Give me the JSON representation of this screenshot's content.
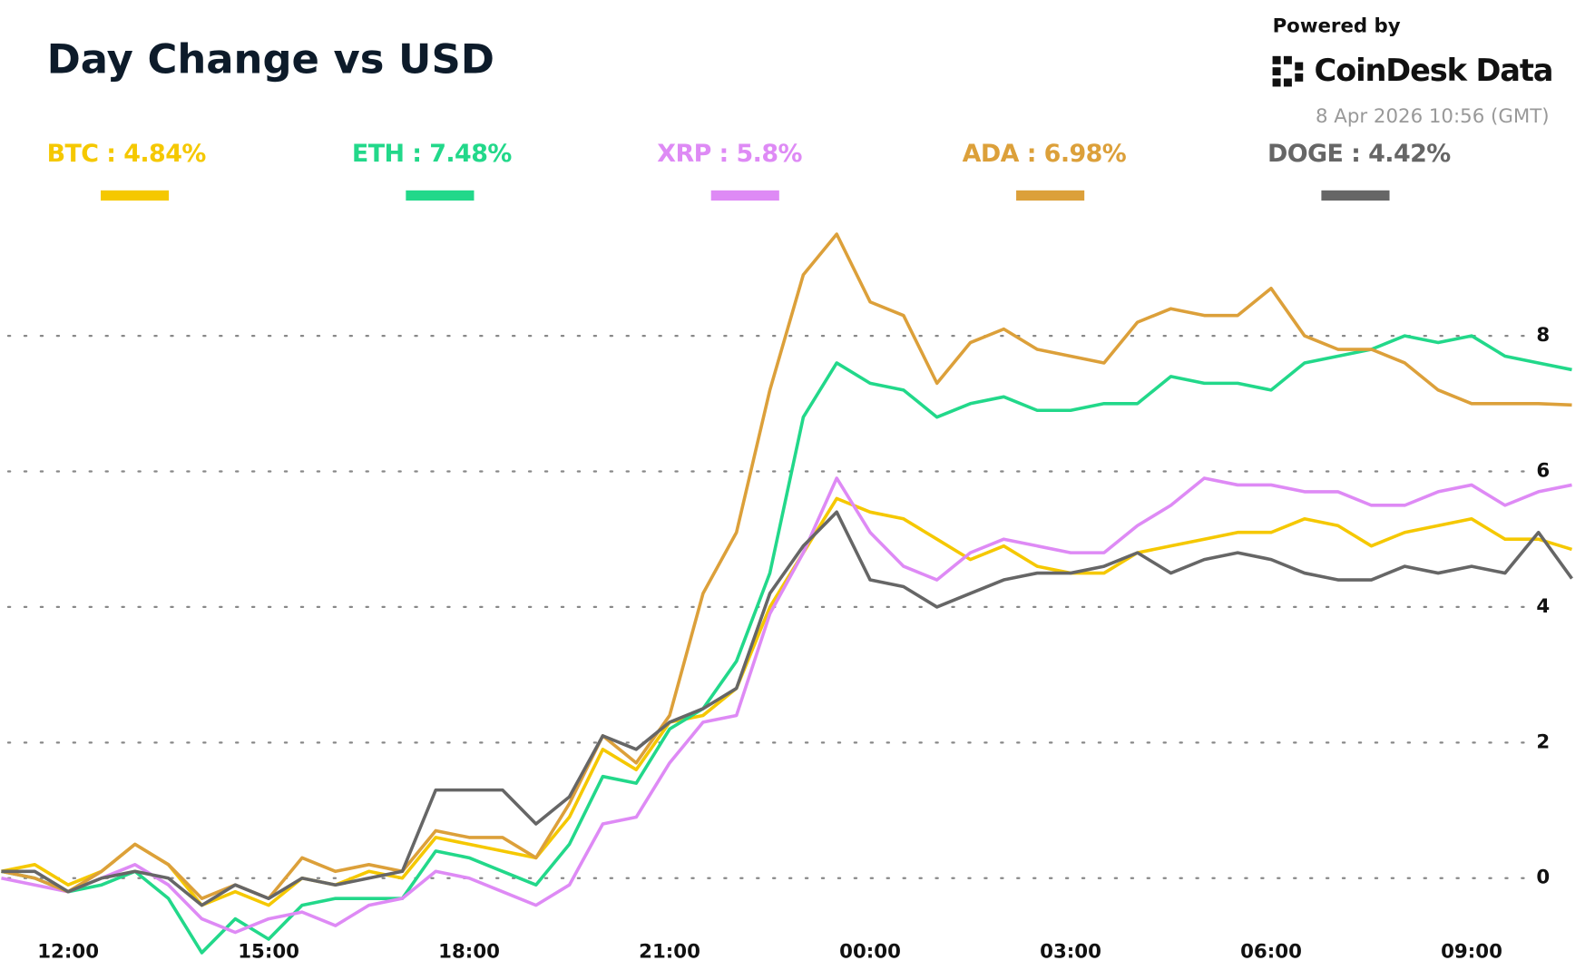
{
  "chart_data": {
    "type": "line",
    "title": "Day Change vs USD",
    "attribution": "Powered by",
    "brand": "CoinDesk Data",
    "timestamp": "8 Apr 2026 10:56 (GMT)",
    "categories": [
      null,
      null,
      "12:00",
      null,
      null,
      null,
      null,
      null,
      "15:00",
      null,
      null,
      null,
      null,
      null,
      "18:00",
      null,
      null,
      null,
      null,
      null,
      "21:00",
      null,
      null,
      null,
      null,
      null,
      "00:00",
      null,
      null,
      null,
      null,
      null,
      "03:00",
      null,
      null,
      null,
      null,
      null,
      "06:00",
      null,
      null,
      null,
      null,
      null,
      "09:00",
      null,
      null,
      null
    ],
    "ylim": [
      -0.6,
      9.8
    ],
    "yticks": [
      0,
      2,
      4,
      6,
      8
    ],
    "grid": true,
    "series": [
      {
        "name": "BTC : 4.84%",
        "color": "#f5c800",
        "values": [
          0.1,
          0.2,
          -0.1,
          0.1,
          0.5,
          0.2,
          -0.4,
          -0.2,
          -0.4,
          0.0,
          -0.1,
          0.1,
          0.0,
          0.6,
          0.5,
          0.4,
          0.3,
          0.9,
          1.9,
          1.6,
          2.3,
          2.4,
          2.8,
          4.0,
          4.8,
          5.6,
          5.4,
          5.3,
          5.0,
          4.7,
          4.9,
          4.6,
          4.5,
          4.5,
          4.8,
          4.9,
          5.0,
          5.1,
          5.1,
          5.3,
          5.2,
          4.9,
          5.1,
          5.2,
          5.3,
          5.0,
          5.0,
          4.85
        ]
      },
      {
        "name": "ETH : 7.48%",
        "color": "#22d88a",
        "values": [
          0.1,
          0.0,
          -0.2,
          -0.1,
          0.1,
          -0.3,
          -1.1,
          -0.6,
          -0.9,
          -0.4,
          -0.3,
          -0.3,
          -0.3,
          0.4,
          0.3,
          0.1,
          -0.1,
          0.5,
          1.5,
          1.4,
          2.2,
          2.5,
          3.2,
          4.5,
          6.8,
          7.6,
          7.3,
          7.2,
          6.8,
          7.0,
          7.1,
          6.9,
          6.9,
          7.0,
          7.0,
          7.4,
          7.3,
          7.3,
          7.2,
          7.6,
          7.7,
          7.8,
          8.0,
          7.9,
          8.0,
          7.7,
          7.6,
          7.5
        ]
      },
      {
        "name": "XRP : 5.8%",
        "color": "#de8af5",
        "values": [
          0.0,
          -0.1,
          -0.2,
          0.0,
          0.2,
          -0.1,
          -0.6,
          -0.8,
          -0.6,
          -0.5,
          -0.7,
          -0.4,
          -0.3,
          0.1,
          0.0,
          -0.2,
          -0.4,
          -0.1,
          0.8,
          0.9,
          1.7,
          2.3,
          2.4,
          3.9,
          4.8,
          5.9,
          5.1,
          4.6,
          4.4,
          4.8,
          5.0,
          4.9,
          4.8,
          4.8,
          5.2,
          5.5,
          5.9,
          5.8,
          5.8,
          5.7,
          5.7,
          5.5,
          5.5,
          5.7,
          5.8,
          5.5,
          5.7,
          5.8
        ]
      },
      {
        "name": "ADA : 6.98%",
        "color": "#dca03a",
        "values": [
          0.1,
          0.0,
          -0.2,
          0.1,
          0.5,
          0.2,
          -0.3,
          -0.1,
          -0.3,
          0.3,
          0.1,
          0.2,
          0.1,
          0.7,
          0.6,
          0.6,
          0.3,
          1.1,
          2.1,
          1.7,
          2.4,
          4.2,
          5.1,
          7.2,
          8.9,
          9.5,
          8.5,
          8.3,
          7.3,
          7.9,
          8.1,
          7.8,
          7.7,
          7.6,
          8.2,
          8.4,
          8.3,
          8.3,
          8.7,
          8.0,
          7.8,
          7.8,
          7.6,
          7.2,
          7.0,
          7.0,
          7.0,
          6.98
        ]
      },
      {
        "name": "DOGE : 4.42%",
        "color": "#666666",
        "values": [
          0.1,
          0.1,
          -0.2,
          0.0,
          0.1,
          0.0,
          -0.4,
          -0.1,
          -0.3,
          0.0,
          -0.1,
          0.0,
          0.1,
          1.3,
          1.3,
          1.3,
          0.8,
          1.2,
          2.1,
          1.9,
          2.3,
          2.5,
          2.8,
          4.2,
          4.9,
          5.4,
          4.4,
          4.3,
          4.0,
          4.2,
          4.4,
          4.5,
          4.5,
          4.6,
          4.8,
          4.5,
          4.7,
          4.8,
          4.7,
          4.5,
          4.4,
          4.4,
          4.6,
          4.5,
          4.6,
          4.5,
          5.1,
          4.42
        ]
      }
    ]
  }
}
